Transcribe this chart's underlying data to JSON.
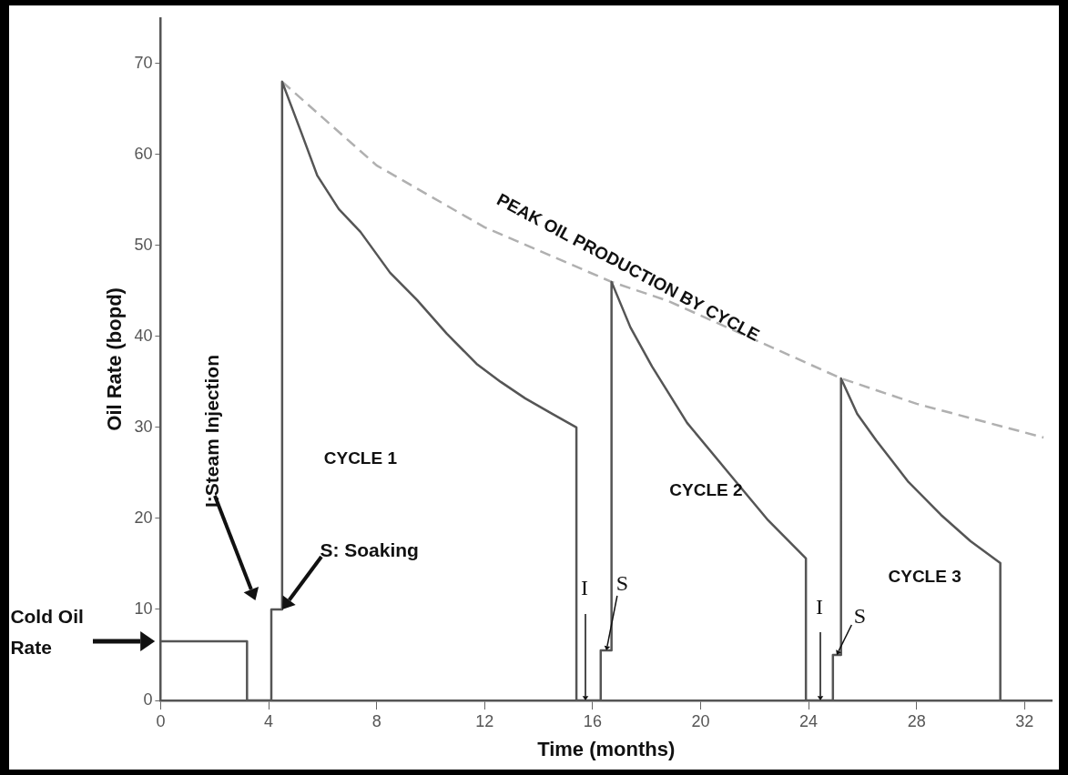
{
  "chart_data": {
    "type": "line",
    "xlabel": "Time (months)",
    "ylabel": "Oil Rate (bopd)",
    "xlim": [
      0,
      33
    ],
    "ylim": [
      0,
      75
    ],
    "xticks": [
      0,
      4,
      8,
      12,
      16,
      20,
      24,
      28,
      32
    ],
    "yticks": [
      0,
      10,
      20,
      30,
      40,
      50,
      60,
      70
    ],
    "grid": false,
    "legend": false,
    "marker": "none",
    "series": [
      {
        "color": "#555555",
        "line_style": "solid",
        "x": [
          0,
          3.2,
          3.2,
          4.1,
          4.1,
          4.5,
          4.5,
          5.2,
          5.8,
          6.6,
          7.4,
          8.5,
          9.5,
          10.6,
          11.7,
          12.6,
          13.5,
          14.5,
          15.4,
          15.4,
          16.3,
          16.3,
          16.7,
          16.7,
          17.4,
          18.2,
          19.5,
          20.9,
          22.5,
          23.9,
          23.9,
          24.9,
          24.9,
          25.2,
          25.2,
          25.8,
          26.5,
          27.7,
          28.9,
          30,
          31.1,
          31.1
        ],
        "values": [
          6.5,
          6.5,
          0,
          0,
          10,
          10,
          68,
          62.5,
          57.7,
          54,
          51.5,
          47,
          44,
          40.3,
          37,
          35,
          33.2,
          31.5,
          30,
          0,
          0,
          5.5,
          5.5,
          46,
          41,
          36.7,
          30.5,
          25.5,
          19.8,
          15.6,
          0,
          0,
          5,
          5,
          35.4,
          31.5,
          28.6,
          24,
          20.4,
          17.5,
          15.1,
          0
        ]
      },
      {
        "color": "#b0b0b0",
        "line_style": "dashed",
        "x": [
          4.5,
          8,
          12,
          16.7,
          18.8,
          25.2,
          28,
          32.7
        ],
        "values": [
          68,
          58.8,
          52,
          46,
          43.9,
          35.4,
          32.6,
          28.9
        ]
      }
    ],
    "annotations": [
      "Cold Oil Rate",
      "I:Steam Injection",
      "S: Soaking",
      "CYCLE 1",
      "CYCLE 2",
      "CYCLE 3",
      "PEAK OIL PRODUCTION BY CYCLE",
      {
        "text": "I",
        "x": 15.75,
        "y": 0
      },
      {
        "text": "S",
        "x": 16.5,
        "y": 5.5
      },
      {
        "text": "I",
        "x": 24.45,
        "y": 0
      },
      {
        "text": "S",
        "x": 25.05,
        "y": 5
      }
    ]
  }
}
